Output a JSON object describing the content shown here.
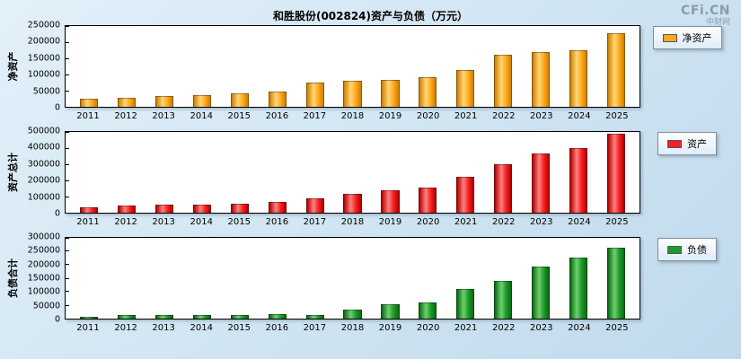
{
  "header": {
    "title": "和胜股份(002824)资产与负债（万元）",
    "logo": "CFi.CN",
    "logo_sub": "中财网"
  },
  "chart_data": [
    {
      "id": "net-assets",
      "type": "bar",
      "ylabel": "净资产",
      "legend": "净资产",
      "color": "#FFA81E",
      "color_light": "#FFD775",
      "color_dark": "#D07E00",
      "ylim": [
        0,
        250000
      ],
      "ytick_step": 50000,
      "categories": [
        "2011",
        "2012",
        "2013",
        "2014",
        "2015",
        "2016",
        "2017",
        "2018",
        "2019",
        "2020",
        "2021",
        "2022",
        "2023",
        "2024",
        "2025"
      ],
      "values": [
        25000,
        28000,
        34000,
        37000,
        41000,
        47000,
        75000,
        80000,
        83000,
        93000,
        114000,
        160000,
        169000,
        174000,
        228000
      ]
    },
    {
      "id": "total-assets",
      "type": "bar",
      "ylabel": "资产总计",
      "legend": "资产",
      "color": "#F52020",
      "color_light": "#FF8080",
      "color_dark": "#B40000",
      "ylim": [
        0,
        500000
      ],
      "ytick_step": 100000,
      "categories": [
        "2011",
        "2012",
        "2013",
        "2014",
        "2015",
        "2016",
        "2017",
        "2018",
        "2019",
        "2020",
        "2021",
        "2022",
        "2023",
        "2024",
        "2025"
      ],
      "values": [
        33000,
        43000,
        49000,
        50000,
        56000,
        65000,
        90000,
        115000,
        138000,
        153000,
        224000,
        300000,
        364000,
        402000,
        490000
      ]
    },
    {
      "id": "liabilities",
      "type": "bar",
      "ylabel": "负债合计",
      "legend": "负债",
      "color": "#1E9A28",
      "color_light": "#6FD070",
      "color_dark": "#0A6A14",
      "ylim": [
        0,
        300000
      ],
      "ytick_step": 50000,
      "categories": [
        "2011",
        "2012",
        "2013",
        "2014",
        "2015",
        "2016",
        "2017",
        "2018",
        "2019",
        "2020",
        "2021",
        "2022",
        "2023",
        "2024",
        "2025"
      ],
      "values": [
        8000,
        15000,
        15000,
        13000,
        15000,
        18000,
        15000,
        35000,
        55000,
        60000,
        110000,
        140000,
        195000,
        227000,
        262000
      ]
    }
  ]
}
